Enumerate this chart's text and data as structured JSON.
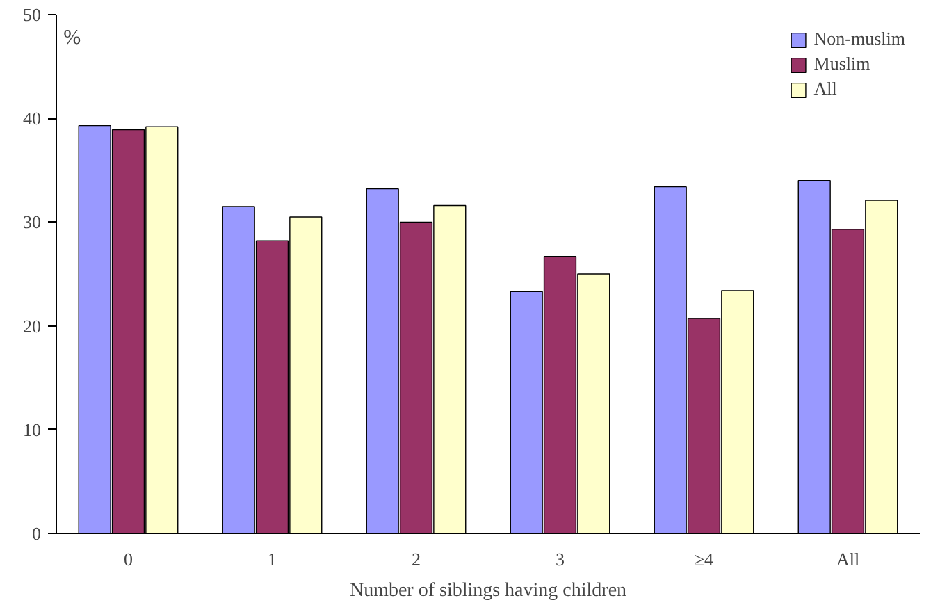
{
  "chart_data": {
    "type": "bar",
    "xlabel": "Number of siblings having children",
    "ylabel": "%",
    "categories": [
      "0",
      "1",
      "2",
      "3",
      "≥4",
      "All"
    ],
    "series": [
      {
        "name": "Non-muslim",
        "color": "#9999ff",
        "values": [
          39.3,
          31.5,
          33.2,
          23.3,
          33.4,
          34.0
        ]
      },
      {
        "name": "Muslim",
        "color": "#993366",
        "values": [
          38.9,
          28.2,
          30.0,
          26.7,
          20.7,
          29.3
        ]
      },
      {
        "name": "All",
        "color": "#ffffcc",
        "values": [
          39.2,
          30.5,
          31.6,
          25.0,
          23.4,
          32.1
        ]
      }
    ],
    "ylim": [
      0,
      50
    ],
    "yticks": [
      0,
      10,
      20,
      30,
      40,
      50
    ],
    "grid": false,
    "legend": "top right"
  }
}
